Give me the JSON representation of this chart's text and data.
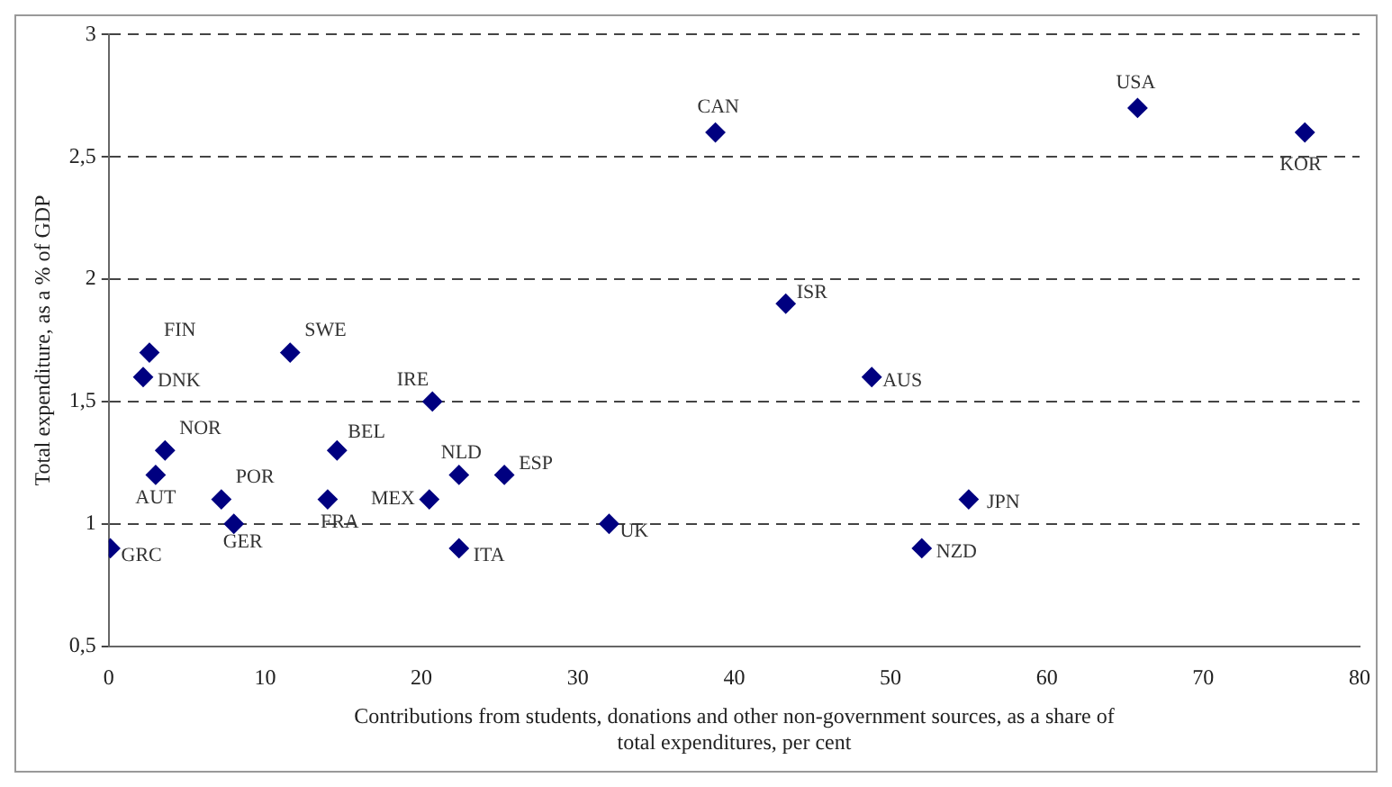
{
  "chart_data": {
    "type": "scatter",
    "xlabel": "Contributions from students, donations and other non-government sources, as a share of total expenditures, per cent",
    "ylabel": "Total expenditure, as a % of GDP",
    "series": [
      {
        "color": "#000080",
        "x": [
          38.8,
          65.8,
          76.5,
          43.3,
          48.8,
          55,
          52,
          32,
          25.3,
          22.4,
          22.4,
          20.5,
          20.7,
          14.6,
          14,
          11.6,
          7.2,
          8,
          3.6,
          3,
          2.6,
          2.2,
          0.1
        ],
        "values": [
          2.6,
          2.7,
          2.6,
          1.9,
          1.6,
          1.1,
          0.9,
          1.0,
          1.2,
          1.2,
          0.9,
          1.1,
          1.5,
          1.3,
          1.1,
          1.7,
          1.1,
          1.0,
          1.3,
          1.2,
          1.7,
          1.6,
          0.9
        ],
        "value_labels": [
          "CAN",
          "USA",
          "KOR",
          "ISR",
          "AUS",
          "JPN",
          "NZD",
          "UK",
          "ESP",
          "NLD",
          "ITA",
          "MEX",
          "IRE",
          "BEL",
          "FRA",
          "SWE",
          "POR",
          "GER",
          "NOR",
          "AUT",
          "FIN",
          "DNK",
          "GRC"
        ]
      }
    ],
    "marker": "diamond",
    "xlim": [
      0,
      80
    ],
    "xticks": [
      0,
      10,
      20,
      30,
      40,
      50,
      60,
      70,
      80
    ],
    "ylim": [
      0.5,
      3
    ],
    "yticks": [
      {
        "value": 0.5,
        "label": "0,5"
      },
      1,
      {
        "value": 1.5,
        "label": "1,5"
      },
      2,
      {
        "value": 2.5,
        "label": "2,5"
      },
      3
    ],
    "grid": "y",
    "line_style": "dashed",
    "legend": false
  }
}
